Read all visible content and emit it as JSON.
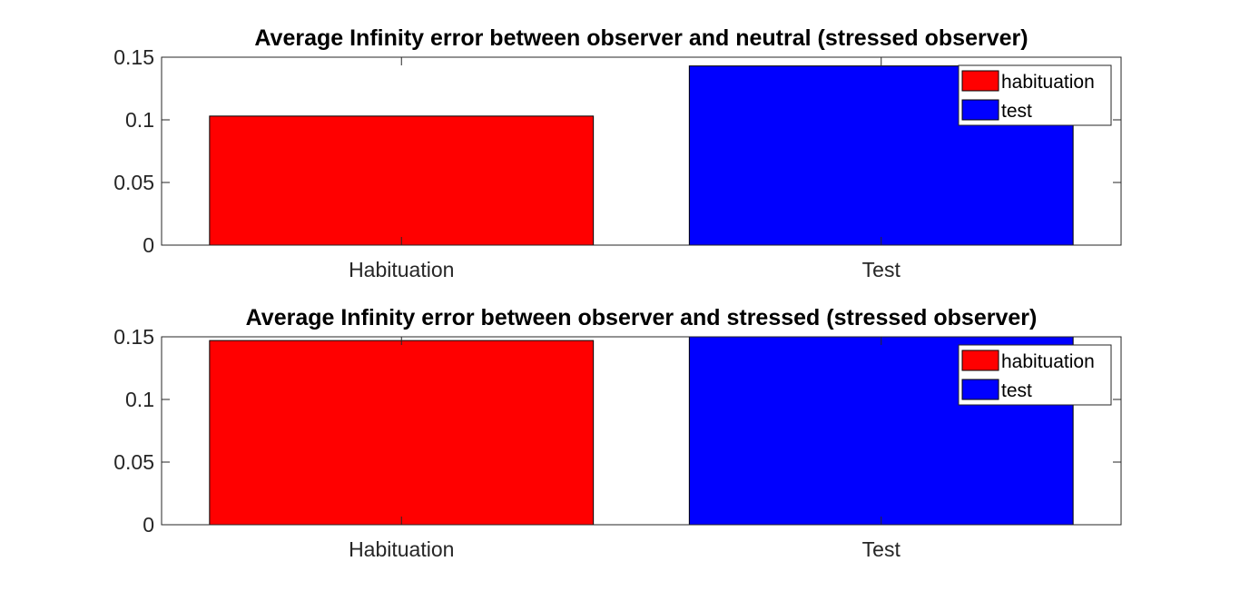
{
  "chart_data": [
    {
      "type": "bar",
      "title": "Average Infinity error between observer and neutral (stressed observer)",
      "categories": [
        "Habituation",
        "Test"
      ],
      "series": [
        {
          "name": "habituation",
          "values": [
            0.103,
            null
          ],
          "color": "#ff0000"
        },
        {
          "name": "test",
          "values": [
            null,
            0.143
          ],
          "color": "#0000ff"
        }
      ],
      "values": [
        0.103,
        0.143
      ],
      "colors": [
        "#ff0000",
        "#0000ff"
      ],
      "ylim": [
        0,
        0.15
      ],
      "xlim": [
        0.5,
        2.5
      ],
      "yticks": [
        0,
        0.05,
        0.1,
        0.15
      ],
      "ytick_labels": [
        "0",
        "0.05",
        "0.1",
        "0.15"
      ],
      "xlabel": "",
      "ylabel": "",
      "grid": false,
      "legend": {
        "position": "top-right",
        "entries": [
          "habituation",
          "test"
        ]
      }
    },
    {
      "type": "bar",
      "title": "Average Infinity error between observer and stressed (stressed observer)",
      "categories": [
        "Habituation",
        "Test"
      ],
      "series": [
        {
          "name": "habituation",
          "values": [
            0.147,
            null
          ],
          "color": "#ff0000"
        },
        {
          "name": "test",
          "values": [
            null,
            0.15
          ],
          "color": "#0000ff"
        }
      ],
      "values": [
        0.147,
        0.15
      ],
      "colors": [
        "#ff0000",
        "#0000ff"
      ],
      "ylim": [
        0,
        0.15
      ],
      "xlim": [
        0.5,
        2.5
      ],
      "yticks": [
        0,
        0.05,
        0.1,
        0.15
      ],
      "ytick_labels": [
        "0",
        "0.05",
        "0.1",
        "0.15"
      ],
      "xlabel": "",
      "ylabel": "",
      "grid": false,
      "legend": {
        "position": "top-right",
        "entries": [
          "habituation",
          "test"
        ]
      }
    }
  ]
}
